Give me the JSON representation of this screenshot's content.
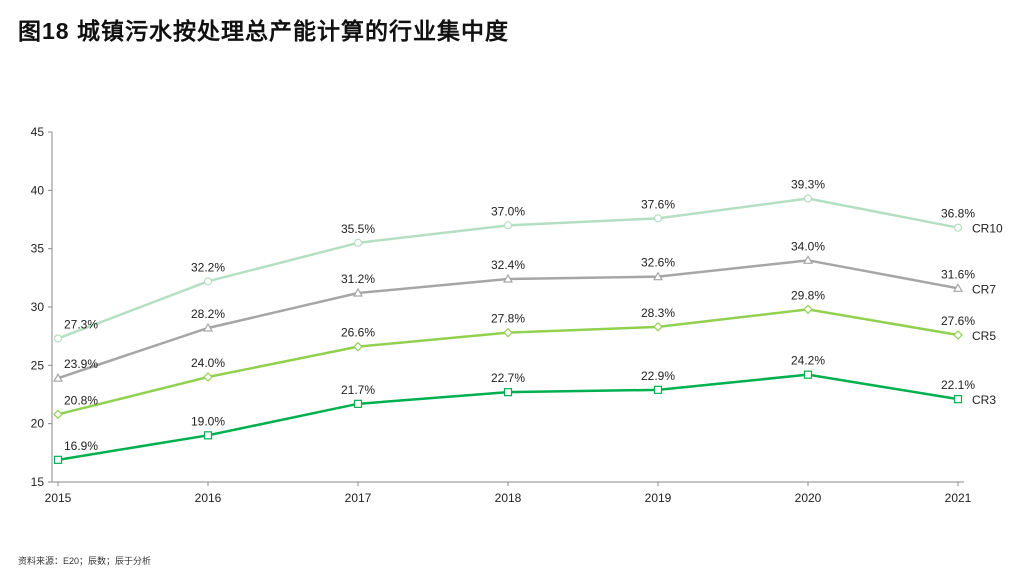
{
  "title": "图18  城镇污水按处理总产能计算的行业集中度",
  "source": "资料来源：E20；辰数；辰于分析",
  "chart_data": {
    "type": "line",
    "title": "图18  城镇污水按处理总产能计算的行业集中度",
    "categories": [
      "2015",
      "2016",
      "2017",
      "2018",
      "2019",
      "2020",
      "2021"
    ],
    "ylim": [
      15,
      45
    ],
    "yticks": [
      15,
      20,
      25,
      30,
      35,
      40,
      45
    ],
    "grid": false,
    "legend": "inline-right",
    "series": [
      {
        "name": "CR10",
        "color": "#b5dfc3",
        "marker": "circle",
        "values": [
          27.3,
          32.2,
          35.5,
          37.0,
          37.6,
          39.3,
          36.8
        ]
      },
      {
        "name": "CR7",
        "color": "#a6a6a6",
        "marker": "triangle",
        "values": [
          23.9,
          28.2,
          31.2,
          32.4,
          32.6,
          34.0,
          31.6
        ]
      },
      {
        "name": "CR5",
        "color": "#92d050",
        "marker": "diamond",
        "values": [
          20.8,
          24.0,
          26.6,
          27.8,
          28.3,
          29.8,
          27.6
        ]
      },
      {
        "name": "CR3",
        "color": "#00b050",
        "marker": "square",
        "values": [
          16.9,
          19.0,
          21.7,
          22.7,
          22.9,
          24.2,
          22.1
        ]
      }
    ]
  }
}
